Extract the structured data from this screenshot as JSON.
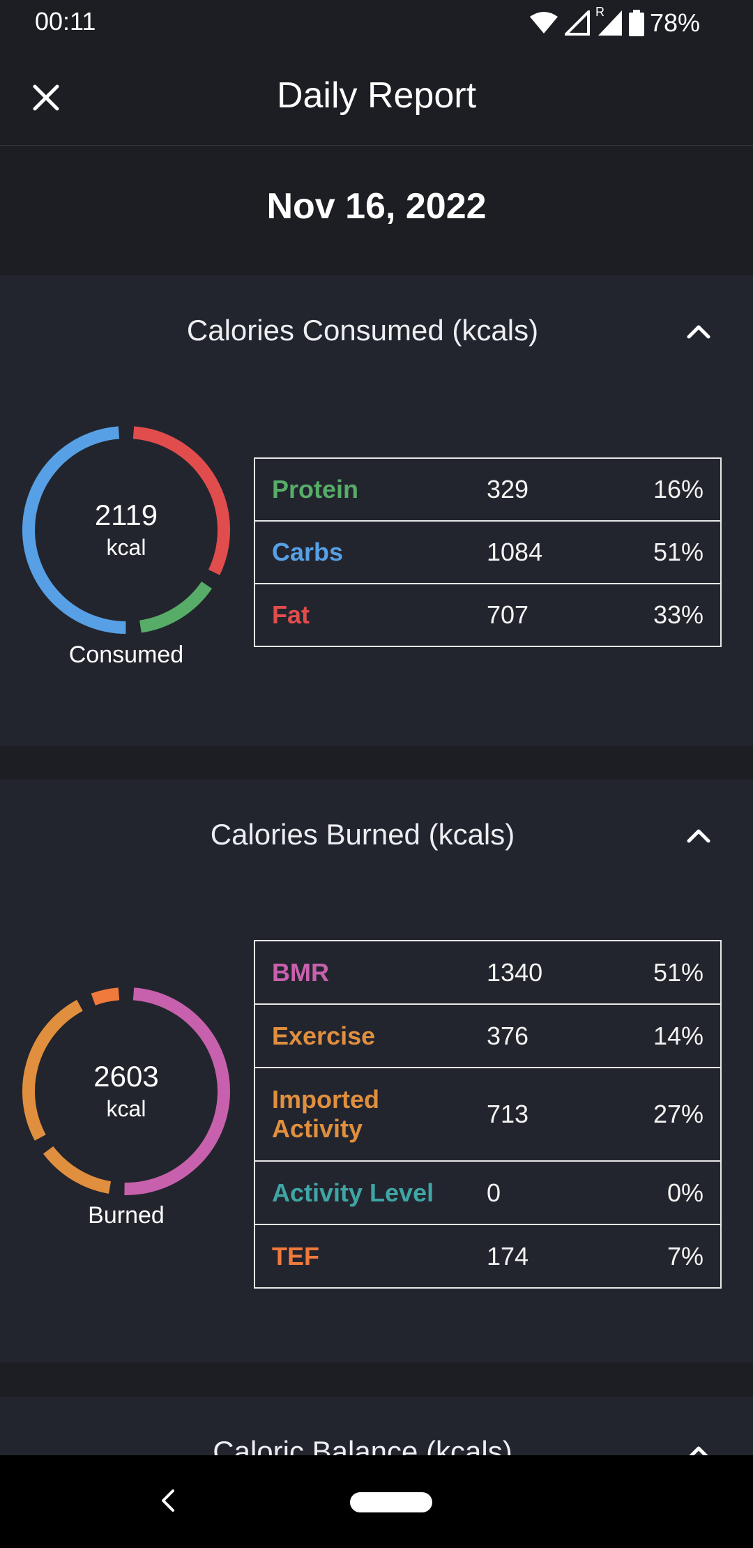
{
  "status_bar": {
    "time": "00:11",
    "roaming": "R",
    "battery": "78%"
  },
  "header": {
    "title": "Daily Report",
    "close_icon": "close-icon"
  },
  "date": "Nov 16, 2022",
  "colors": {
    "protein": "#57ad68",
    "carbs": "#57a0e5",
    "fat": "#e14d4d",
    "bmr": "#c861ad",
    "exercise": "#e08f3e",
    "imported": "#e08f3e",
    "activity_level": "#3fa5a5",
    "tef": "#ef7a3c"
  },
  "consumed": {
    "title": "Calories Consumed (kcals)",
    "total": "2119",
    "unit": "kcal",
    "caption": "Consumed",
    "rows": [
      {
        "name": "Protein",
        "value": "329",
        "percent": "16%",
        "color": "#57ad68"
      },
      {
        "name": "Carbs",
        "value": "1084",
        "percent": "51%",
        "color": "#57a0e5"
      },
      {
        "name": "Fat",
        "value": "707",
        "percent": "33%",
        "color": "#e14d4d"
      }
    ]
  },
  "burned": {
    "title": "Calories Burned (kcals)",
    "total": "2603",
    "unit": "kcal",
    "caption": "Burned",
    "rows": [
      {
        "name": "BMR",
        "value": "1340",
        "percent": "51%",
        "color": "#c861ad"
      },
      {
        "name": "Exercise",
        "value": "376",
        "percent": "14%",
        "color": "#e08f3e"
      },
      {
        "name": "Imported Activity",
        "value": "713",
        "percent": "27%",
        "color": "#e08f3e"
      },
      {
        "name": "Activity Level",
        "value": "0",
        "percent": "0%",
        "color": "#3fa5a5"
      },
      {
        "name": "TEF",
        "value": "174",
        "percent": "7%",
        "color": "#ef7a3c"
      }
    ]
  },
  "balance": {
    "title": "Caloric Balance (kcals)"
  },
  "chart_data": [
    {
      "type": "pie",
      "categories": [
        "Fat",
        "Protein",
        "Carbs"
      ],
      "values": [
        707,
        329,
        1084
      ],
      "colors": [
        "#e14d4d",
        "#57ad68",
        "#57a0e5"
      ]
    },
    {
      "type": "pie",
      "categories": [
        "BMR",
        "Exercise",
        "Imported Activity",
        "TEF"
      ],
      "values": [
        1340,
        376,
        713,
        174
      ],
      "colors": [
        "#c861ad",
        "#e08f3e",
        "#e08f3e",
        "#ef7a3c"
      ]
    }
  ]
}
